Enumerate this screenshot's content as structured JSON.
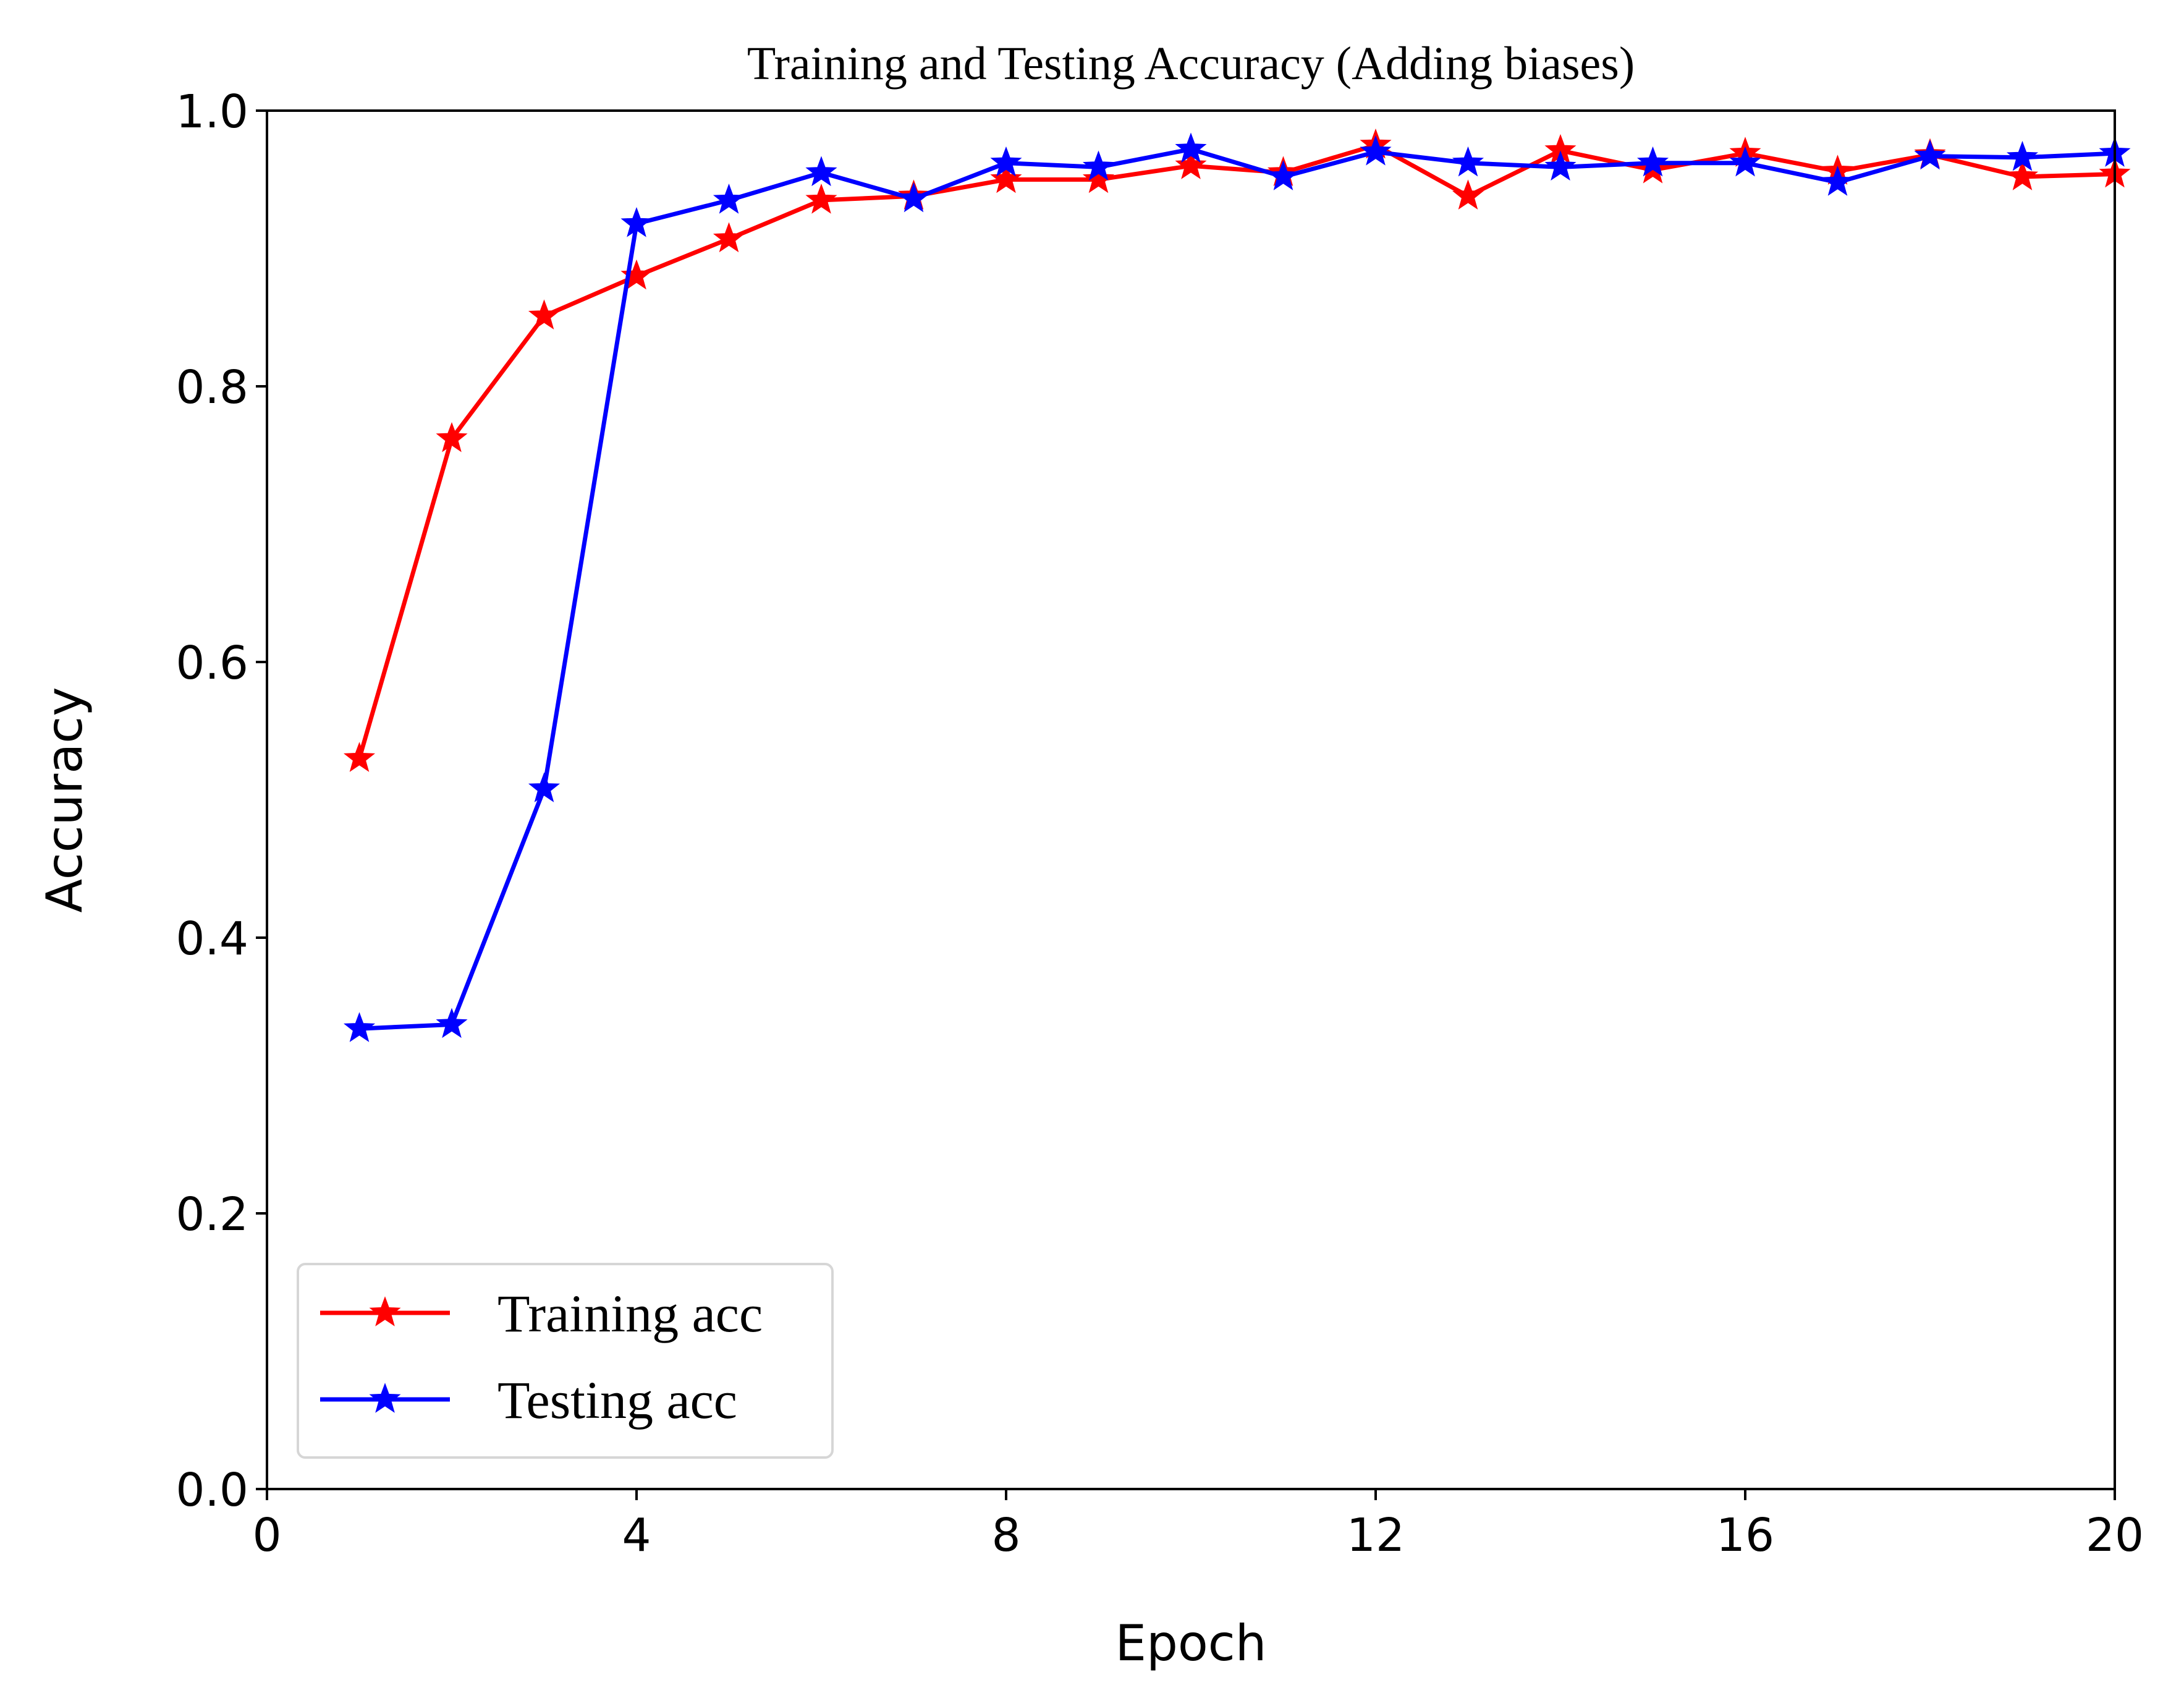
{
  "chart_data": {
    "type": "line",
    "title": "Training and Testing Accuracy (Adding biases)",
    "xlabel": "Epoch",
    "ylabel": "Accuracy",
    "xlim": [
      0,
      20
    ],
    "ylim": [
      0.0,
      1.0
    ],
    "xticks": [
      0,
      4,
      8,
      12,
      16,
      20
    ],
    "xtick_labels": [
      "0",
      "4",
      "8",
      "12",
      "16",
      "20"
    ],
    "yticks": [
      0.0,
      0.2,
      0.4,
      0.6,
      0.8,
      1.0
    ],
    "ytick_labels": [
      "0.0",
      "0.2",
      "0.4",
      "0.6",
      "0.8",
      "1.0"
    ],
    "grid": false,
    "legend_position": "lower-left",
    "x": [
      1,
      2,
      3,
      4,
      5,
      6,
      7,
      8,
      9,
      10,
      11,
      12,
      13,
      14,
      15,
      16,
      17,
      18,
      19,
      20
    ],
    "series": [
      {
        "name": "Training acc",
        "color": "#ff0000",
        "marker": "star",
        "values": [
          0.53,
          0.762,
          0.851,
          0.88,
          0.907,
          0.935,
          0.938,
          0.95,
          0.95,
          0.96,
          0.955,
          0.975,
          0.938,
          0.971,
          0.957,
          0.969,
          0.956,
          0.968,
          0.952,
          0.954
        ]
      },
      {
        "name": "Testing acc",
        "color": "#0000ff",
        "marker": "star",
        "values": [
          0.334,
          0.337,
          0.508,
          0.918,
          0.935,
          0.955,
          0.936,
          0.962,
          0.959,
          0.972,
          0.952,
          0.97,
          0.962,
          0.959,
          0.962,
          0.962,
          0.948,
          0.967,
          0.966,
          0.969
        ]
      }
    ]
  }
}
